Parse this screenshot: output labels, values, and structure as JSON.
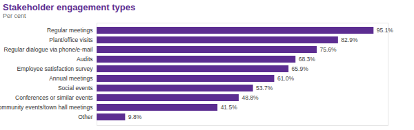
{
  "chart_data": {
    "type": "bar",
    "orientation": "horizontal",
    "title": "Stakeholder engagement types",
    "subtitle": "Per cent",
    "categories": [
      "Regular meetings",
      "Plant/office visits",
      "Regular dialogue via phone/e-mail",
      "Audits",
      "Employee satisfaction survey",
      "Annual meetings",
      "Social events",
      "Conferences or similar events",
      "Community events/town hall meetings",
      "Other"
    ],
    "values": [
      95.1,
      82.9,
      75.6,
      68.3,
      65.9,
      61.0,
      53.7,
      48.8,
      41.5,
      9.8
    ],
    "value_labels": [
      "95.1%",
      "82.9%",
      "75.6%",
      "68.3%",
      "65.9%",
      "61.0%",
      "53.7%",
      "48.8%",
      "41.5%",
      "9.8%"
    ],
    "color": "#5c2d91",
    "xlim": [
      0,
      100
    ],
    "data_labels": true,
    "tick_labels": "y",
    "grid": false
  }
}
